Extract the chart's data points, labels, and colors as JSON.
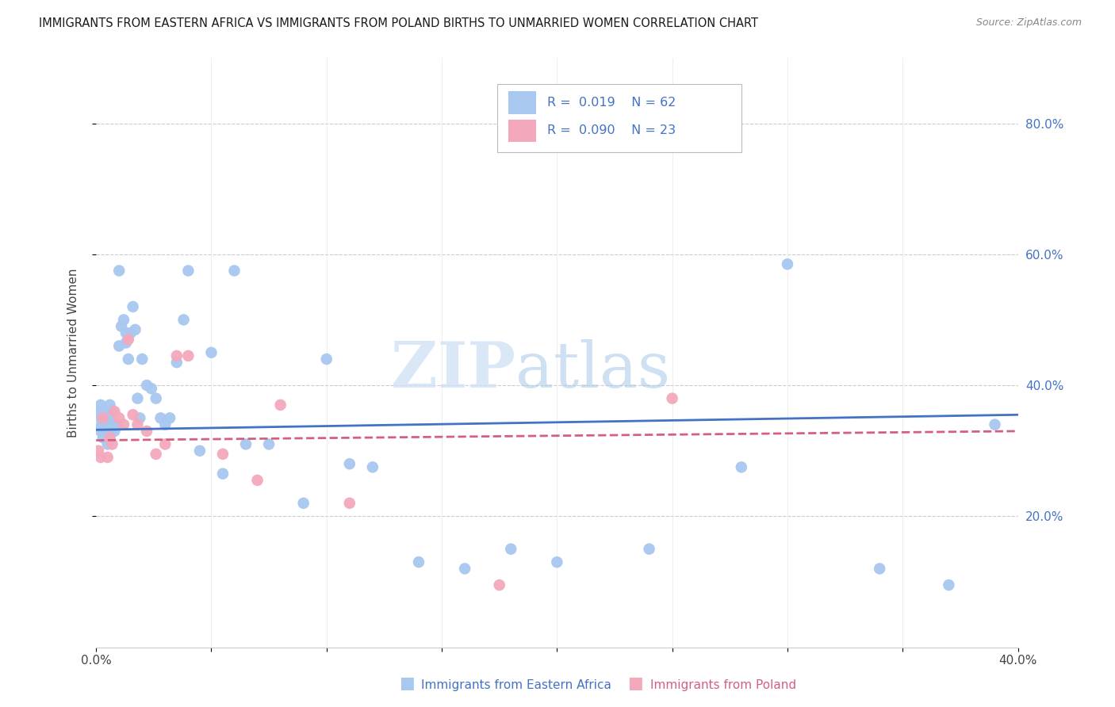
{
  "title": "IMMIGRANTS FROM EASTERN AFRICA VS IMMIGRANTS FROM POLAND BIRTHS TO UNMARRIED WOMEN CORRELATION CHART",
  "source": "Source: ZipAtlas.com",
  "ylabel": "Births to Unmarried Women",
  "legend_label1": "Immigrants from Eastern Africa",
  "legend_label2": "Immigrants from Poland",
  "R1": "0.019",
  "N1": "62",
  "R2": "0.090",
  "N2": "23",
  "color_blue": "#a8c8f0",
  "color_pink": "#f4a8bc",
  "color_blue_dark": "#4472c4",
  "color_pink_dark": "#d46080",
  "color_text_blue": "#4472c4",
  "blue_x": [
    0.001,
    0.001,
    0.002,
    0.002,
    0.002,
    0.003,
    0.003,
    0.003,
    0.004,
    0.004,
    0.005,
    0.005,
    0.005,
    0.006,
    0.006,
    0.006,
    0.007,
    0.007,
    0.008,
    0.009,
    0.01,
    0.01,
    0.011,
    0.012,
    0.013,
    0.013,
    0.014,
    0.015,
    0.016,
    0.017,
    0.018,
    0.019,
    0.02,
    0.022,
    0.024,
    0.026,
    0.028,
    0.03,
    0.032,
    0.035,
    0.038,
    0.04,
    0.045,
    0.05,
    0.055,
    0.06,
    0.065,
    0.075,
    0.09,
    0.1,
    0.11,
    0.12,
    0.14,
    0.16,
    0.18,
    0.2,
    0.24,
    0.28,
    0.3,
    0.34,
    0.37,
    0.39
  ],
  "blue_y": [
    0.335,
    0.36,
    0.33,
    0.35,
    0.37,
    0.32,
    0.34,
    0.36,
    0.33,
    0.35,
    0.31,
    0.34,
    0.355,
    0.33,
    0.35,
    0.37,
    0.34,
    0.36,
    0.33,
    0.34,
    0.575,
    0.46,
    0.49,
    0.5,
    0.48,
    0.465,
    0.44,
    0.48,
    0.52,
    0.485,
    0.38,
    0.35,
    0.44,
    0.4,
    0.395,
    0.38,
    0.35,
    0.34,
    0.35,
    0.435,
    0.5,
    0.575,
    0.3,
    0.45,
    0.265,
    0.575,
    0.31,
    0.31,
    0.22,
    0.44,
    0.28,
    0.275,
    0.13,
    0.12,
    0.15,
    0.13,
    0.15,
    0.275,
    0.585,
    0.12,
    0.095,
    0.34
  ],
  "pink_x": [
    0.001,
    0.002,
    0.003,
    0.005,
    0.006,
    0.007,
    0.008,
    0.01,
    0.012,
    0.014,
    0.016,
    0.018,
    0.022,
    0.026,
    0.03,
    0.035,
    0.04,
    0.055,
    0.07,
    0.08,
    0.11,
    0.175,
    0.25
  ],
  "pink_y": [
    0.3,
    0.29,
    0.35,
    0.29,
    0.32,
    0.31,
    0.36,
    0.35,
    0.34,
    0.47,
    0.355,
    0.34,
    0.33,
    0.295,
    0.31,
    0.445,
    0.445,
    0.295,
    0.255,
    0.37,
    0.22,
    0.095,
    0.38
  ],
  "xlim": [
    0.0,
    0.4
  ],
  "ylim": [
    0.0,
    0.9
  ],
  "xticks": [
    0.0,
    0.05,
    0.1,
    0.15,
    0.2,
    0.25,
    0.3,
    0.35,
    0.4
  ],
  "yticks_right": [
    0.2,
    0.4,
    0.6,
    0.8
  ],
  "ytick_labels_right": [
    "20.0%",
    "40.0%",
    "60.0%",
    "80.0%"
  ],
  "grid_color": "#cccccc",
  "background": "#ffffff"
}
